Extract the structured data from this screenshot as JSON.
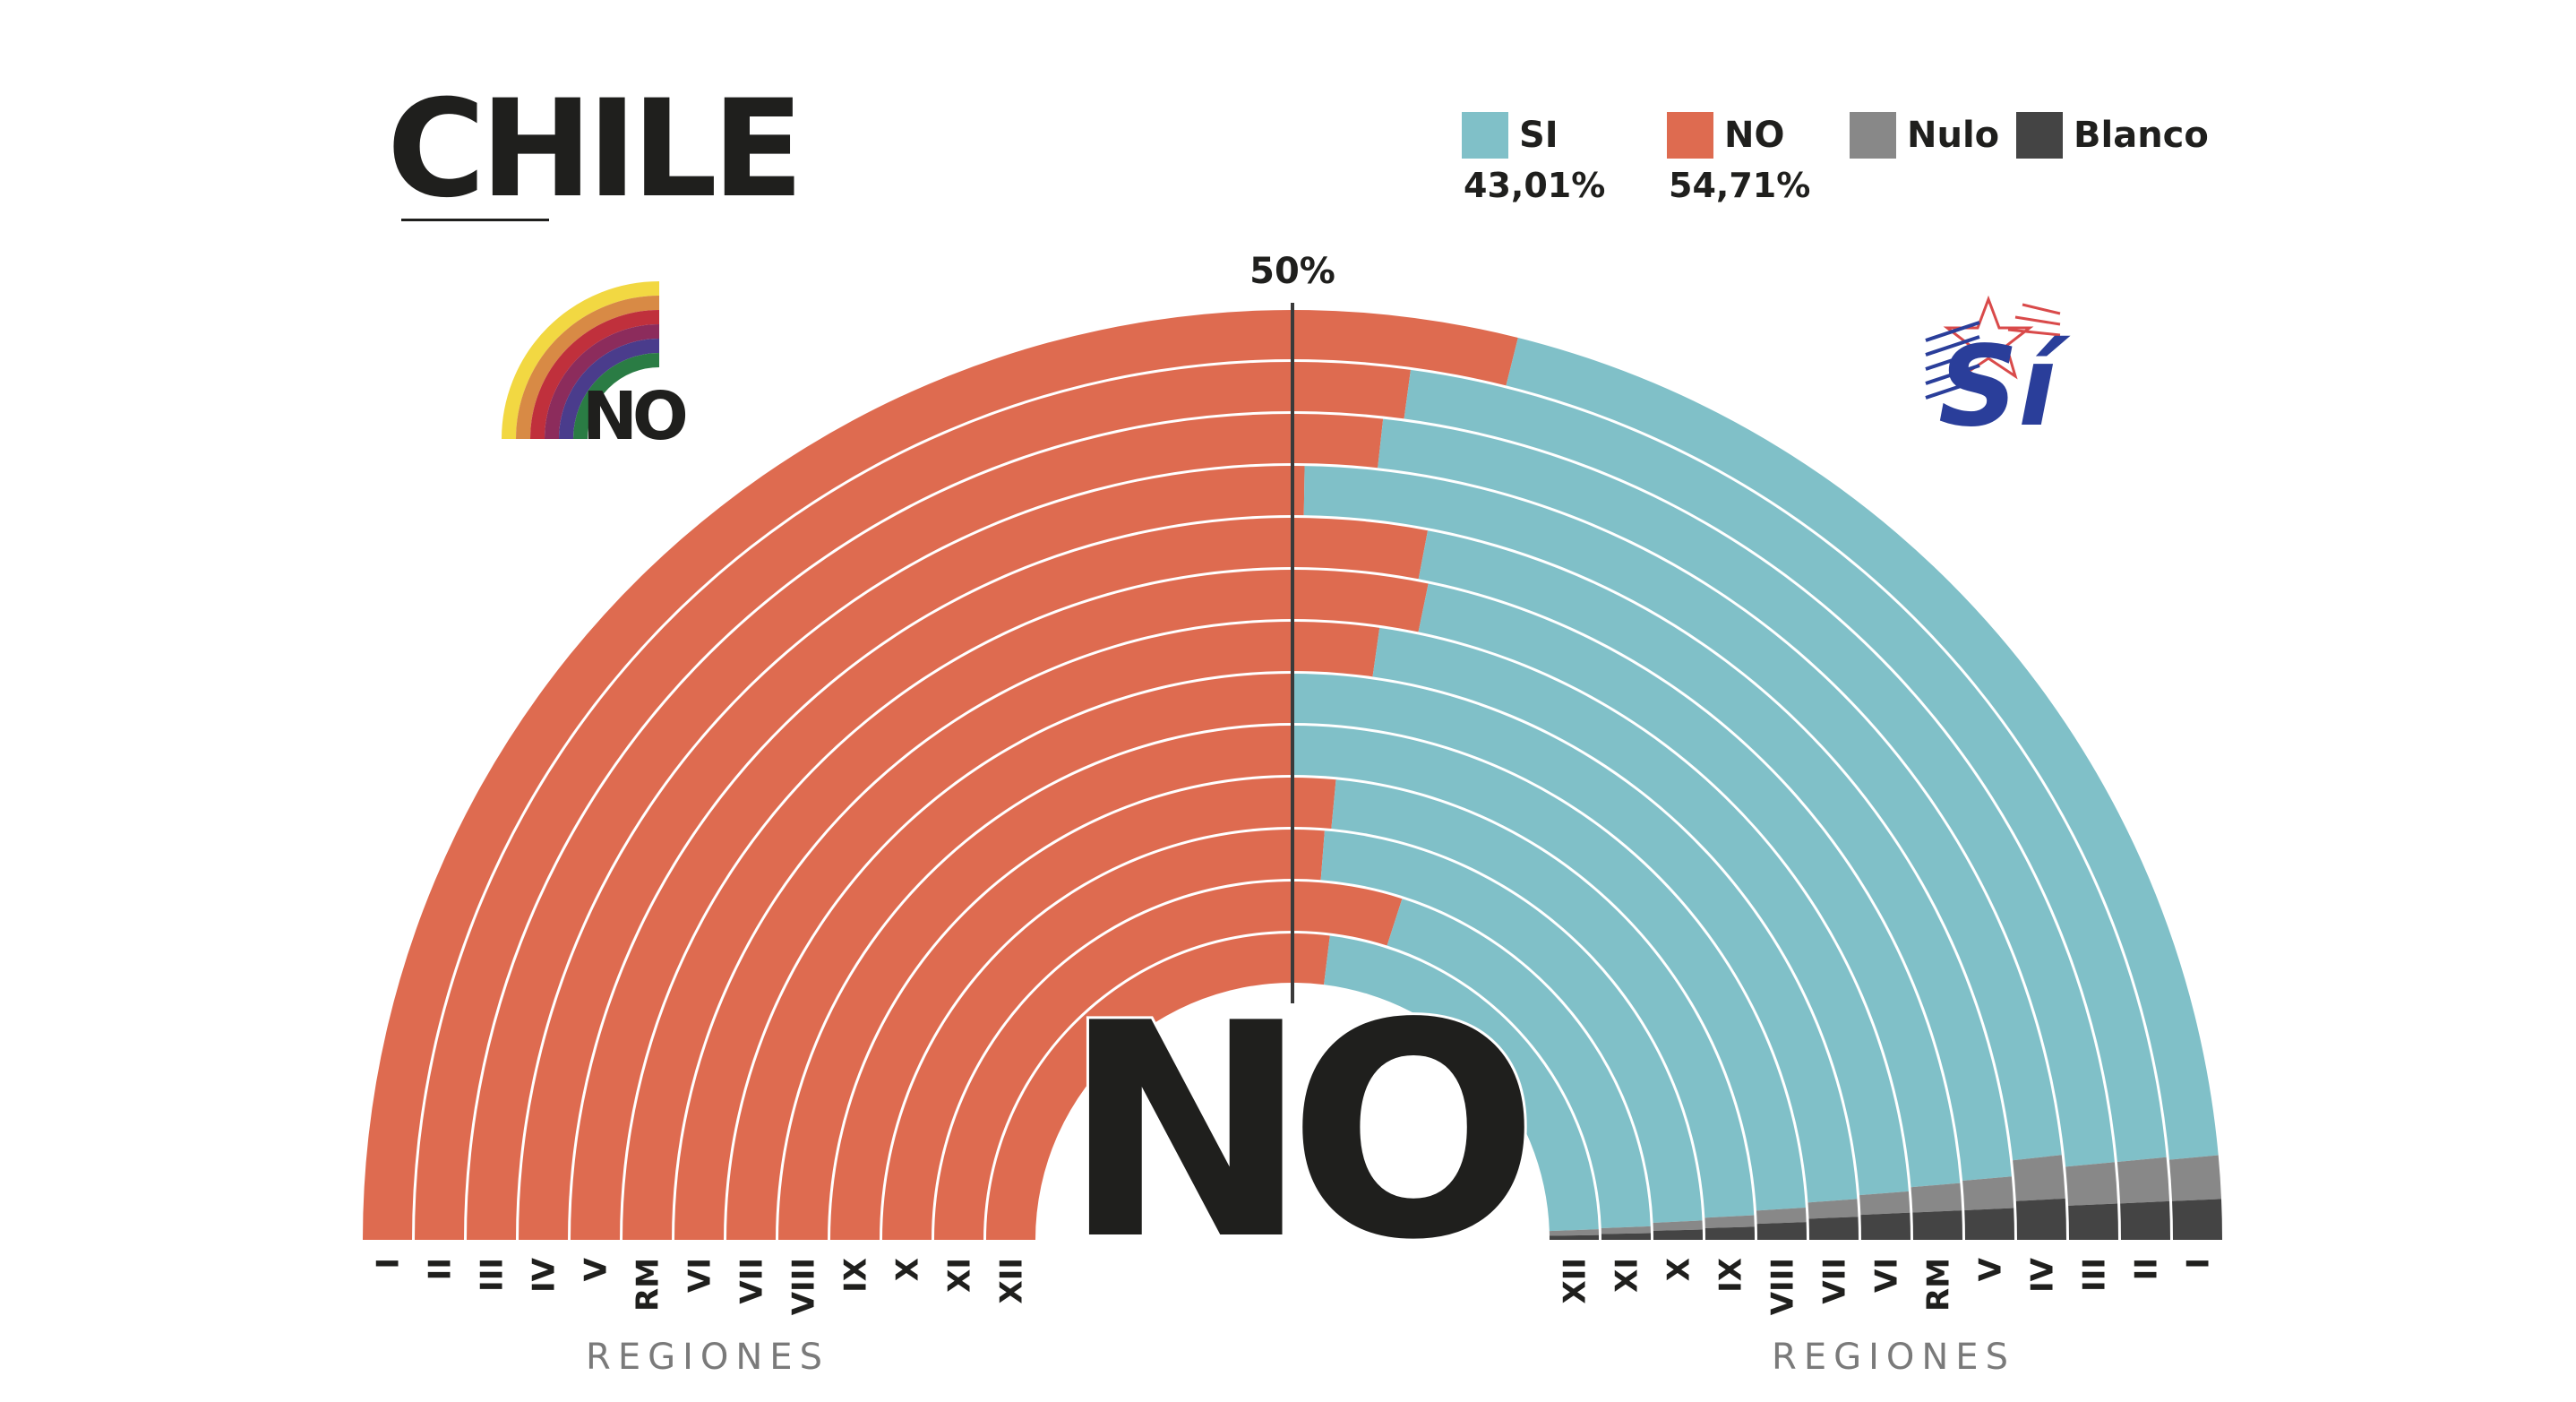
{
  "title": "CHILE",
  "legend": {
    "si": {
      "label": "SI",
      "pct": "43,01%"
    },
    "no": {
      "label": "NO",
      "pct": "54,71%"
    },
    "nulo": {
      "label": "Nulo"
    },
    "blanco": {
      "label": "Blanco"
    }
  },
  "colors": {
    "si": "#80c0c8",
    "no": "#de6b50",
    "nulo": "#888888",
    "blanco": "#444444",
    "ink": "#1f1f1d"
  },
  "logos": {
    "no_logo_text": "NO",
    "si_logo_text": "Sí"
  },
  "result_text": "NO",
  "chart_data": {
    "type": "semicircle-stacked-bar",
    "title": "CHILE",
    "reference_line": {
      "value": 50,
      "label": "50%"
    },
    "axis_title_left": "REGIONES",
    "axis_title_right": "REGIONES",
    "categories": [
      "I",
      "II",
      "III",
      "IV",
      "V",
      "RM",
      "VI",
      "VII",
      "VIII",
      "IX",
      "X",
      "XI",
      "XII"
    ],
    "series": [
      {
        "name": "NO",
        "values": [
          57.8,
          54.3,
          53.5,
          50.5,
          56.0,
          56.5,
          54.5,
          50.0,
          50.0,
          53.0,
          52.5,
          59.9,
          53.9
        ]
      },
      {
        "name": "SI",
        "values": [
          39.3,
          42.7,
          43.5,
          46.0,
          41.2,
          40.8,
          43.0,
          47.7,
          48.0,
          45.3,
          46.0,
          38.9,
          45.0
        ]
      },
      {
        "name": "Nulo",
        "values": [
          1.5,
          1.6,
          1.6,
          1.8,
          1.4,
          1.3,
          1.1,
          1.0,
          0.9,
          0.8,
          0.7,
          0.6,
          0.6
        ]
      },
      {
        "name": "Blanco",
        "values": [
          1.4,
          1.4,
          1.4,
          1.7,
          1.4,
          1.4,
          1.4,
          1.3,
          1.1,
          0.9,
          0.8,
          0.6,
          0.5
        ]
      }
    ]
  }
}
